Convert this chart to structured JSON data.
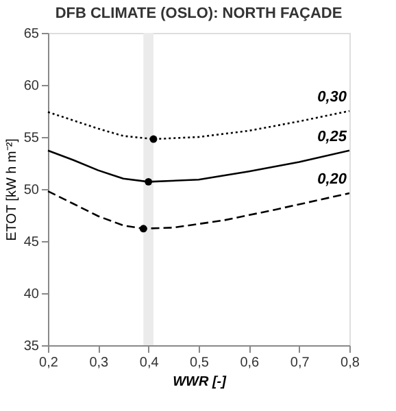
{
  "chart_data": {
    "type": "line",
    "title": "DFB CLIMATE (OSLO): NORTH FAÇADE",
    "xlabel": "WWR [-]",
    "ylabel": "ETOT [kW h m⁻²]",
    "xlim": [
      0.2,
      0.8
    ],
    "xticks": [
      {
        "value": 0.2,
        "label": "0,2"
      },
      {
        "value": 0.3,
        "label": "0,3"
      },
      {
        "value": 0.4,
        "label": "0,4"
      },
      {
        "value": 0.5,
        "label": "0,5"
      },
      {
        "value": 0.6,
        "label": "0,6"
      },
      {
        "value": 0.7,
        "label": "0,7"
      },
      {
        "value": 0.8,
        "label": "0,8"
      }
    ],
    "ylim": [
      35,
      65
    ],
    "yticks": [
      35,
      40,
      45,
      50,
      55,
      60,
      65
    ],
    "bands": [
      {
        "axis": "x",
        "from": 0.39,
        "to": 0.41,
        "color": "#ebebeb"
      }
    ],
    "series": [
      {
        "name": "0,30",
        "line_style": "dotted",
        "color": "#000000",
        "x": [
          0.2,
          0.25,
          0.3,
          0.35,
          0.41,
          0.5,
          0.6,
          0.7,
          0.8
        ],
        "values": [
          57.4,
          56.6,
          55.8,
          55.1,
          54.8,
          55.0,
          55.6,
          56.5,
          57.5
        ]
      },
      {
        "name": "0,25",
        "line_style": "solid",
        "color": "#000000",
        "x": [
          0.2,
          0.25,
          0.3,
          0.35,
          0.4,
          0.5,
          0.6,
          0.7,
          0.8
        ],
        "values": [
          53.7,
          52.8,
          51.8,
          51.0,
          50.7,
          50.9,
          51.7,
          52.6,
          53.7
        ]
      },
      {
        "name": "0,20",
        "line_style": "dashed",
        "color": "#000000",
        "x": [
          0.2,
          0.25,
          0.3,
          0.35,
          0.39,
          0.45,
          0.55,
          0.65,
          0.8
        ],
        "values": [
          49.8,
          48.6,
          47.4,
          46.5,
          46.2,
          46.3,
          47.0,
          48.0,
          49.6
        ]
      },
      {
        "type": "scatter",
        "marker": "circle",
        "color": "#000000",
        "x": [
          0.41,
          0.4,
          0.39
        ],
        "values": [
          54.8,
          50.7,
          46.2
        ]
      }
    ]
  }
}
